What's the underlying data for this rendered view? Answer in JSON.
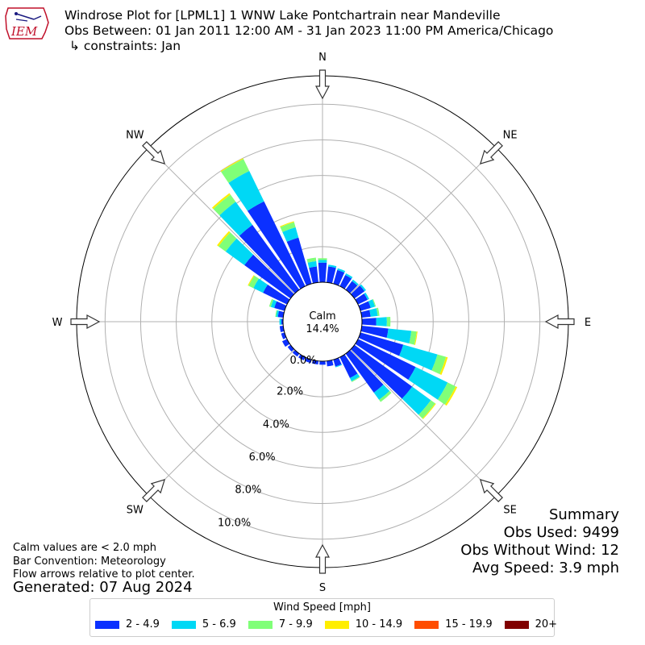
{
  "logo": {
    "text": "IEM"
  },
  "title": {
    "line1": "Windrose Plot for [LPML1] 1 WNW Lake Pontchartrain near Mandeville",
    "line2": "Obs Between: 01 Jan 2011 12:00 AM - 31 Jan 2023 11:00 PM America/Chicago",
    "line3": "↳ constraints: Jan"
  },
  "chart_data": {
    "type": "windrose",
    "convention": "meteorology",
    "directions_deg": [
      0,
      10,
      20,
      30,
      40,
      50,
      60,
      70,
      80,
      90,
      100,
      110,
      120,
      130,
      140,
      150,
      160,
      170,
      180,
      190,
      200,
      210,
      220,
      230,
      240,
      250,
      260,
      270,
      280,
      290,
      300,
      310,
      320,
      330,
      340,
      350
    ],
    "compass_labels": [
      "N",
      "NE",
      "E",
      "SE",
      "S",
      "SW",
      "W",
      "NW"
    ],
    "radial_ticks": [
      "0.0%",
      "2.0%",
      "4.0%",
      "6.0%",
      "8.0%",
      "10.0%"
    ],
    "radial_tick_values": [
      0,
      2,
      4,
      6,
      8,
      10
    ],
    "rmax": 11.6,
    "calm": {
      "label": "Calm",
      "value": "14.4%"
    },
    "speed_bins": [
      "2 - 4.9",
      "5 - 6.9",
      "7 - 9.9",
      "10 - 14.9",
      "15 - 19.9",
      "20+"
    ],
    "colors": [
      "#0b30ff",
      "#00d8f5",
      "#80ff78",
      "#ffee00",
      "#ff4d00",
      "#800000"
    ],
    "series": [
      {
        "name": "2 - 4.9",
        "values": [
          1.1,
          0.9,
          0.8,
          0.7,
          0.6,
          0.7,
          0.6,
          0.6,
          0.5,
          0.8,
          1.5,
          2.5,
          3.6,
          4.0,
          2.7,
          1.3,
          0.4,
          0.3,
          0.2,
          0.2,
          0.2,
          0.2,
          0.2,
          0.2,
          0.3,
          0.2,
          0.2,
          0.1,
          0.3,
          0.6,
          1.5,
          3.2,
          4.5,
          5.3,
          2.7,
          0.9
        ]
      },
      {
        "name": "5 - 6.9",
        "values": [
          0.15,
          0.1,
          0.1,
          0.1,
          0.1,
          0.1,
          0.1,
          0.25,
          0.4,
          0.6,
          1.3,
          2.0,
          2.0,
          1.3,
          0.5,
          0.2,
          0.05,
          0,
          0,
          0,
          0,
          0,
          0,
          0,
          0,
          0,
          0,
          0.1,
          0.1,
          0.2,
          0.6,
          1.3,
          1.6,
          1.9,
          0.6,
          0.3
        ]
      },
      {
        "name": "7 - 9.9",
        "values": [
          0.1,
          0,
          0,
          0,
          0,
          0,
          0,
          0.05,
          0.1,
          0.2,
          0.3,
          0.5,
          0.5,
          0.3,
          0.15,
          0.05,
          0,
          0,
          0,
          0,
          0,
          0,
          0,
          0,
          0,
          0,
          0,
          0,
          0.05,
          0.1,
          0.3,
          0.5,
          0.5,
          0.75,
          0.3,
          0.2
        ]
      },
      {
        "name": "10 - 14.9",
        "values": [
          0,
          0,
          0,
          0,
          0,
          0,
          0,
          0,
          0,
          0,
          0.05,
          0.1,
          0.1,
          0.05,
          0,
          0,
          0,
          0,
          0,
          0,
          0,
          0,
          0,
          0,
          0,
          0,
          0,
          0,
          0,
          0,
          0.05,
          0.1,
          0.1,
          0.05,
          0.05,
          0
        ]
      },
      {
        "name": "15 - 19.9",
        "values": [
          0,
          0,
          0,
          0,
          0,
          0,
          0,
          0,
          0,
          0,
          0,
          0,
          0,
          0,
          0,
          0,
          0,
          0,
          0,
          0,
          0,
          0,
          0,
          0,
          0,
          0,
          0,
          0,
          0,
          0,
          0,
          0,
          0,
          0,
          0,
          0
        ]
      },
      {
        "name": "20+",
        "values": [
          0,
          0,
          0,
          0,
          0,
          0,
          0,
          0,
          0,
          0,
          0,
          0,
          0,
          0,
          0,
          0,
          0,
          0,
          0,
          0,
          0,
          0,
          0,
          0,
          0,
          0,
          0,
          0,
          0,
          0,
          0,
          0,
          0,
          0,
          0,
          0
        ]
      }
    ]
  },
  "summary": {
    "title": "Summary",
    "obs_used": "Obs Used: 9499",
    "obs_without_wind": "Obs Without Wind: 12",
    "avg_speed": "Avg Speed: 3.9 mph"
  },
  "notes": {
    "calm_note": "Calm values are < 2.0 mph",
    "bar_convention": "Bar Convention: Meteorology",
    "flow_arrows": "Flow arrows relative to plot center."
  },
  "generated": "Generated: 07 Aug 2024",
  "legend": {
    "title": "Wind Speed [mph]",
    "items": [
      {
        "label": "2 - 4.9",
        "color": "#0b30ff"
      },
      {
        "label": "5 - 6.9",
        "color": "#00d8f5"
      },
      {
        "label": "7 - 9.9",
        "color": "#80ff78"
      },
      {
        "label": "10 - 14.9",
        "color": "#ffee00"
      },
      {
        "label": "15 - 19.9",
        "color": "#ff4d00"
      },
      {
        "label": "20+",
        "color": "#800000"
      }
    ]
  }
}
